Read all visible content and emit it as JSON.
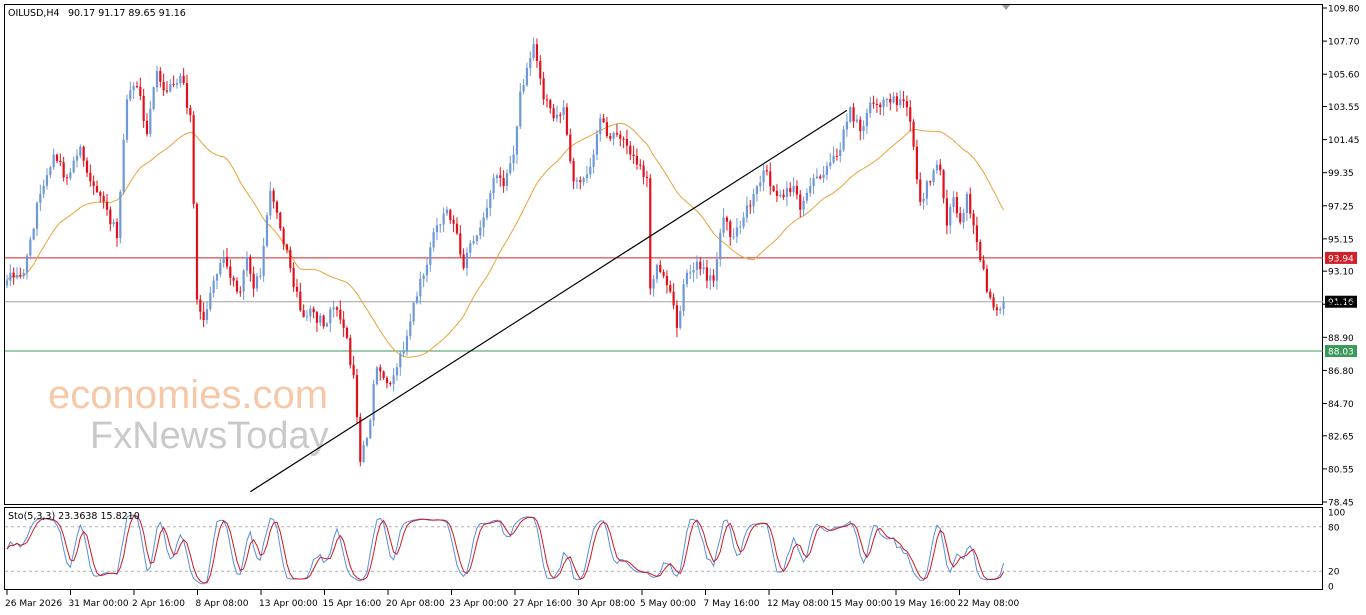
{
  "header": {
    "symbol": "OILUSD,H4",
    "ohlc": "90.17 91.17 89.65 91.16"
  },
  "watermark": {
    "line1": "economies.com",
    "line2": "FxNewsToday"
  },
  "colors": {
    "bull": "#6f98d8",
    "bear": "#e0101c",
    "ma": "#e8a33c",
    "resistance": "#d0202a",
    "support": "#3a9a5a",
    "current": "#a0a0a0",
    "trendline": "#000000",
    "stoch_main": "#5b8ed8",
    "stoch_signal": "#cc1a24"
  },
  "chart_data": [
    {
      "type": "candlestick",
      "name": "OILUSD,H4",
      "y_ticks": [
        "109.80",
        "107.70",
        "105.60",
        "103.55",
        "101.45",
        "99.35",
        "97.25",
        "95.15",
        "93.10",
        "91.00",
        "88.90",
        "86.80",
        "84.70",
        "82.65",
        "80.55",
        "78.45"
      ],
      "ylim": [
        78.45,
        109.8
      ],
      "x_ticks": [
        "26 Mar 2026",
        "31 Mar 00:00",
        "2 Apr 16:00",
        "8 Apr 08:00",
        "13 Apr 00:00",
        "15 Apr 16:00",
        "20 Apr 08:00",
        "23 Apr 00:00",
        "27 Apr 16:00",
        "30 Apr 08:00",
        "5 May 00:00",
        "7 May 16:00",
        "12 May 08:00",
        "15 May 00:00",
        "19 May 16:00",
        "22 May 08:00"
      ],
      "levels": [
        {
          "label": "93.94",
          "value": 93.94,
          "kind": "resistance"
        },
        {
          "label": "91.16",
          "value": 91.16,
          "kind": "current"
        },
        {
          "label": "88.03",
          "value": 88.03,
          "kind": "support"
        }
      ],
      "trendline": {
        "from": {
          "index": 73,
          "price": 79.1
        },
        "to": {
          "index": 252,
          "price": 103.3
        }
      },
      "anchors": [
        [
          0,
          92.5
        ],
        [
          5,
          93.0
        ],
        [
          10,
          98.0
        ],
        [
          14,
          100.5
        ],
        [
          18,
          99.0
        ],
        [
          22,
          101.0
        ],
        [
          26,
          98.5
        ],
        [
          30,
          97.0
        ],
        [
          33,
          95.2
        ],
        [
          36,
          104.0
        ],
        [
          39,
          104.8
        ],
        [
          42,
          101.8
        ],
        [
          45,
          105.8
        ],
        [
          48,
          104.5
        ],
        [
          52,
          105.5
        ],
        [
          55,
          103.0
        ],
        [
          57,
          91.3
        ],
        [
          59,
          90.0
        ],
        [
          62,
          92.5
        ],
        [
          65,
          94.0
        ],
        [
          68,
          92.5
        ],
        [
          70,
          91.8
        ],
        [
          72,
          94.0
        ],
        [
          74,
          92.0
        ],
        [
          76,
          92.8
        ],
        [
          79,
          98.2
        ],
        [
          82,
          95.8
        ],
        [
          85,
          93.3
        ],
        [
          87,
          91.8
        ],
        [
          89,
          90.2
        ],
        [
          92,
          90.5
        ],
        [
          95,
          89.6
        ],
        [
          98,
          90.8
        ],
        [
          101,
          89.5
        ],
        [
          104,
          86.5
        ],
        [
          106,
          81.0
        ],
        [
          108,
          82.5
        ],
        [
          111,
          87.0
        ],
        [
          114,
          86.0
        ],
        [
          117,
          87.0
        ],
        [
          120,
          89.0
        ],
        [
          123,
          91.5
        ],
        [
          126,
          93.5
        ],
        [
          129,
          96.0
        ],
        [
          132,
          97.0
        ],
        [
          135,
          95.5
        ],
        [
          137,
          93.3
        ],
        [
          140,
          95.0
        ],
        [
          143,
          96.5
        ],
        [
          146,
          99.0
        ],
        [
          149,
          98.5
        ],
        [
          152,
          100.5
        ],
        [
          154,
          104.5
        ],
        [
          156,
          106.0
        ],
        [
          158,
          107.5
        ],
        [
          161,
          104.0
        ],
        [
          164,
          102.8
        ],
        [
          167,
          103.5
        ],
        [
          170,
          98.8
        ],
        [
          173,
          99.0
        ],
        [
          176,
          100.5
        ],
        [
          178,
          102.8
        ],
        [
          181,
          101.5
        ],
        [
          184,
          101.5
        ],
        [
          187,
          100.5
        ],
        [
          190,
          99.8
        ],
        [
          192,
          99.0
        ],
        [
          193,
          92.0
        ],
        [
          195,
          93.5
        ],
        [
          197,
          92.8
        ],
        [
          199,
          91.8
        ],
        [
          201,
          89.5
        ],
        [
          204,
          93.0
        ],
        [
          207,
          93.7
        ],
        [
          210,
          92.5
        ],
        [
          212,
          92.5
        ],
        [
          215,
          96.5
        ],
        [
          218,
          95.3
        ],
        [
          221,
          96.5
        ],
        [
          224,
          98.0
        ],
        [
          227,
          99.5
        ],
        [
          230,
          98.2
        ],
        [
          233,
          97.8
        ],
        [
          236,
          98.5
        ],
        [
          238,
          97.0
        ],
        [
          241,
          98.5
        ],
        [
          244,
          99.0
        ],
        [
          247,
          100.0
        ],
        [
          250,
          100.8
        ],
        [
          253,
          103.5
        ],
        [
          256,
          102.0
        ],
        [
          259,
          103.8
        ],
        [
          262,
          103.5
        ],
        [
          265,
          103.8
        ],
        [
          268,
          104.0
        ],
        [
          270,
          103.5
        ],
        [
          272,
          101.0
        ],
        [
          274,
          97.5
        ],
        [
          276,
          98.8
        ],
        [
          278,
          99.5
        ],
        [
          280,
          99.5
        ],
        [
          282,
          96.0
        ],
        [
          284,
          97.8
        ],
        [
          286,
          96.2
        ],
        [
          288,
          98.0
        ],
        [
          290,
          96.0
        ],
        [
          292,
          93.8
        ],
        [
          294,
          91.8
        ],
        [
          296,
          90.8
        ],
        [
          298,
          90.7
        ],
        [
          299,
          91.16
        ]
      ]
    },
    {
      "type": "line",
      "name": "Sto(5,3,3) 23.3638 15.8210",
      "ylim": [
        0,
        100
      ],
      "levels": [
        80,
        20
      ],
      "y_ticks": [
        "100",
        "80",
        "20",
        "0"
      ],
      "series": [
        {
          "name": "23.3638"
        },
        {
          "name": "15.8210"
        }
      ]
    }
  ]
}
